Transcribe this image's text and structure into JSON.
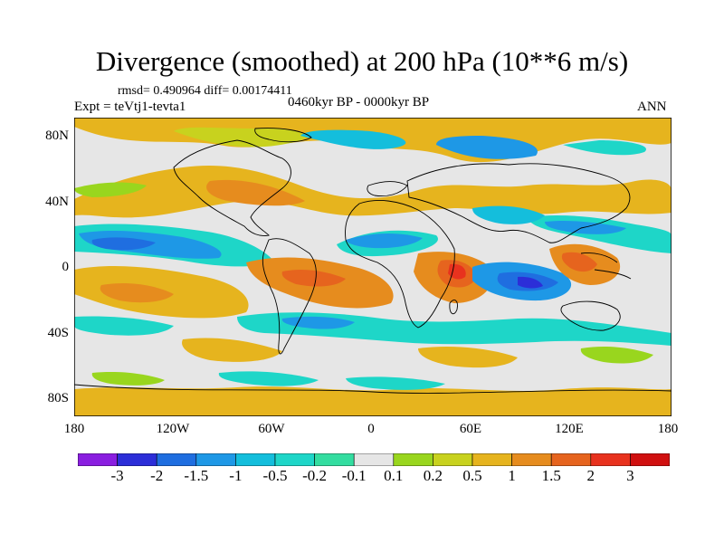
{
  "title": "Divergence (smoothed) at 200 hPa (10**6 m/s)",
  "stats": "rmsd= 0.490964  diff= 0.00174411",
  "experiment": "Expt = teVtj1-tevta1",
  "period": "0460kyr BP - 0000kyr BP",
  "season": "ANN",
  "y_ticks": [
    "80N",
    "40N",
    "0",
    "40S",
    "80S"
  ],
  "x_ticks": [
    "180",
    "120W",
    "60W",
    "0",
    "60E",
    "120E",
    "180"
  ],
  "colorbar": {
    "labels": [
      "-3",
      "-2",
      "-1.5",
      "-1",
      "-0.5",
      "-0.2",
      "-0.1",
      "0.1",
      "0.2",
      "0.5",
      "1",
      "1.5",
      "2",
      "3"
    ],
    "colors": [
      "#8a1ee0",
      "#2c2ed8",
      "#1f6ee0",
      "#1e98e6",
      "#14bedc",
      "#1ed6c8",
      "#33dda0",
      "#e6e6e6",
      "#99d61e",
      "#c8d21e",
      "#e6b41e",
      "#e68c1e",
      "#e6641e",
      "#e8321e",
      "#d01010"
    ]
  }
}
